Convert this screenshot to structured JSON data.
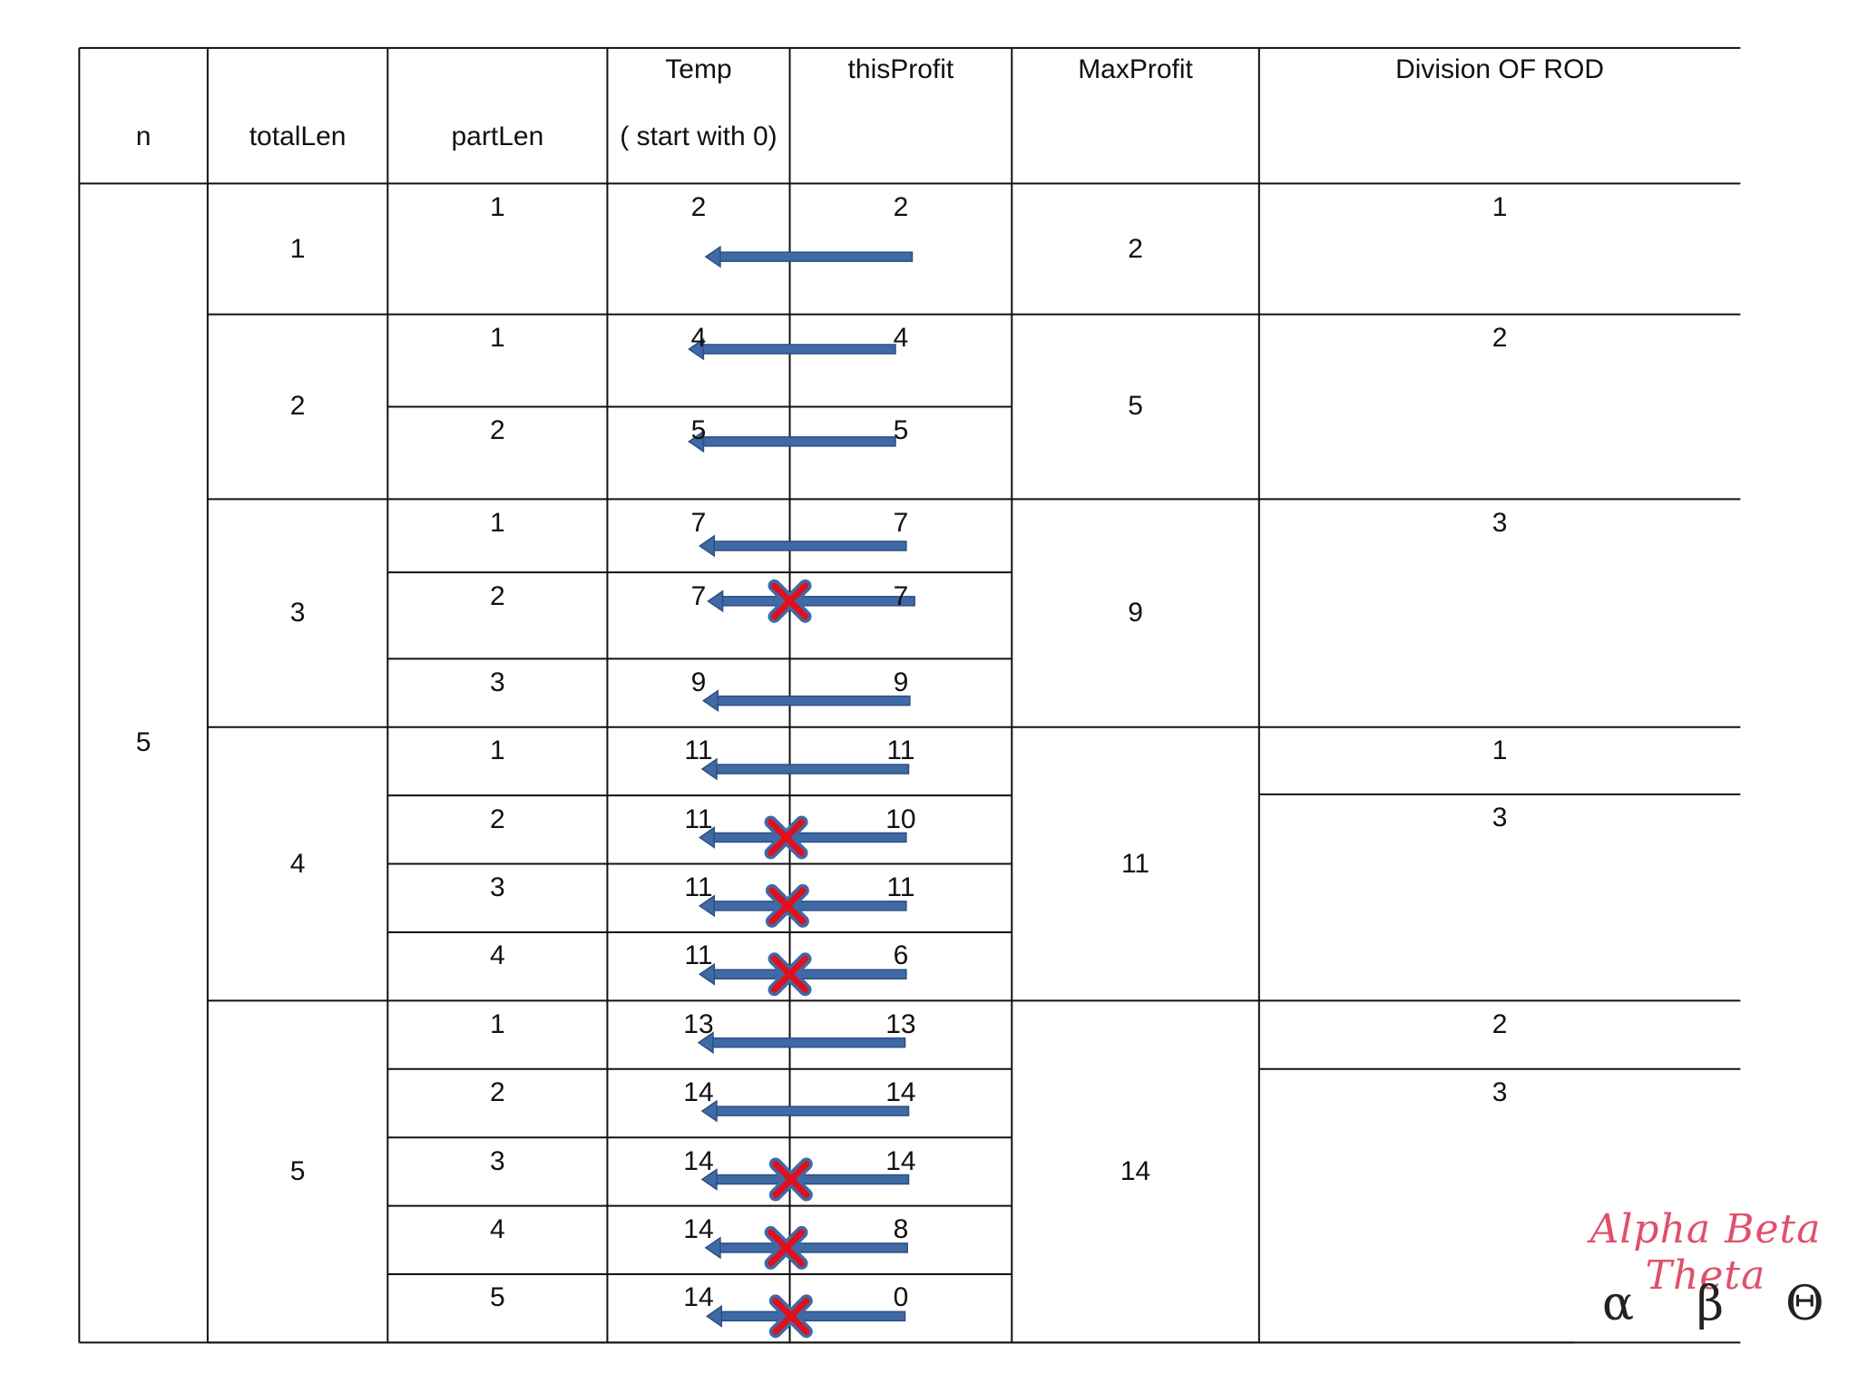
{
  "header": {
    "n": "n",
    "totalLen": "totalLen",
    "partLen": "partLen",
    "temp_line1": "Temp",
    "temp_line2": "( start with 0)",
    "thisProfit": "thisProfit",
    "maxProfit": "MaxProfit",
    "division": "Division OF ROD"
  },
  "n_value": "5",
  "groups": [
    {
      "totalLen": "1",
      "maxProfit": "2",
      "division": [
        "1"
      ],
      "rows": [
        {
          "partLen": "1",
          "temp": "2",
          "thisProfit": "2",
          "crossed": false
        }
      ]
    },
    {
      "totalLen": "2",
      "maxProfit": "5",
      "division": [
        "2"
      ],
      "rows": [
        {
          "partLen": "1",
          "temp": "4",
          "thisProfit": "4",
          "crossed": false
        },
        {
          "partLen": "2",
          "temp": "5",
          "thisProfit": "5",
          "crossed": false
        }
      ]
    },
    {
      "totalLen": "3",
      "maxProfit": "9",
      "division": [
        "3"
      ],
      "rows": [
        {
          "partLen": "1",
          "temp": "7",
          "thisProfit": "7",
          "crossed": false
        },
        {
          "partLen": "2",
          "temp": "7",
          "thisProfit": "7",
          "crossed": true
        },
        {
          "partLen": "3",
          "temp": "9",
          "thisProfit": "9",
          "crossed": false
        }
      ]
    },
    {
      "totalLen": "4",
      "maxProfit": "11",
      "division": [
        "1",
        "3"
      ],
      "rows": [
        {
          "partLen": "1",
          "temp": "11",
          "thisProfit": "11",
          "crossed": false
        },
        {
          "partLen": "2",
          "temp": "11",
          "thisProfit": "10",
          "crossed": true
        },
        {
          "partLen": "3",
          "temp": "11",
          "thisProfit": "11",
          "crossed": true
        },
        {
          "partLen": "4",
          "temp": "11",
          "thisProfit": "6",
          "crossed": true
        }
      ]
    },
    {
      "totalLen": "5",
      "maxProfit": "14",
      "division": [
        "2",
        "3"
      ],
      "rows": [
        {
          "partLen": "1",
          "temp": "13",
          "thisProfit": "13",
          "crossed": false
        },
        {
          "partLen": "2",
          "temp": "14",
          "thisProfit": "14",
          "crossed": false
        },
        {
          "partLen": "3",
          "temp": "14",
          "thisProfit": "14",
          "crossed": true
        },
        {
          "partLen": "4",
          "temp": "14",
          "thisProfit": "8",
          "crossed": true
        },
        {
          "partLen": "5",
          "temp": "14",
          "thisProfit": "0",
          "crossed": true
        }
      ]
    }
  ],
  "logo": {
    "script": "Alpha Beta Theta",
    "alpha": "α",
    "beta": "β",
    "theta": "Θ"
  },
  "colors": {
    "arrow": "#3f6aa6",
    "arrow_edge": "#2c4f82",
    "cross": "#e0101c",
    "cross_edge": "#3f6aa6",
    "logo_script": "#e0506a"
  }
}
